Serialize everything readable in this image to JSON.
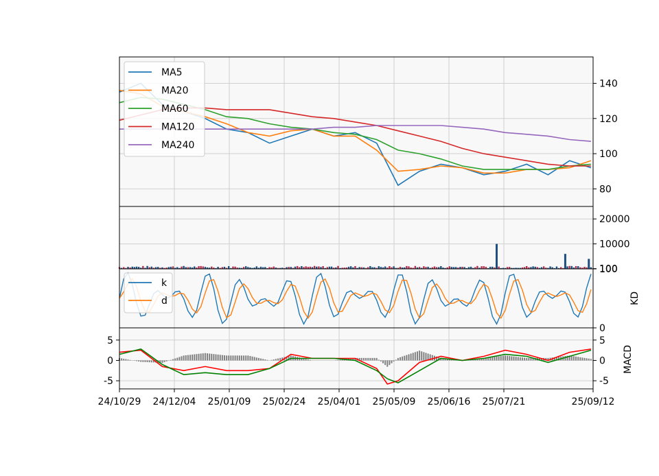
{
  "chart_data": {
    "type": "line",
    "x_tick_labels": [
      "24/10/29",
      "24/12/04",
      "25/01/09",
      "25/02/24",
      "25/04/01",
      "25/05/09",
      "25/06/16",
      "25/07/21",
      "25/09/12"
    ],
    "colors": {
      "MA5": "#1f77b4",
      "MA20": "#ff7f0e",
      "MA60": "#2ca02c",
      "MA120": "#d62728",
      "MA240": "#9467bd",
      "k": "#1f77b4",
      "d": "#ff7f0e",
      "macd_red": "#ff0000",
      "macd_green": "#008000",
      "volume_up": "#b03050",
      "volume_down": "#1f4f7f",
      "histogram": "#808080"
    },
    "price_panel": {
      "y_ticks": [
        "140",
        "120",
        "100",
        "80"
      ],
      "ylim": [
        70,
        155
      ],
      "legend": [
        "MA5",
        "MA20",
        "MA60",
        "MA120",
        "MA240"
      ],
      "legend_position": "upper-left",
      "x": [
        0,
        10,
        20,
        30,
        40,
        50,
        60,
        70,
        80,
        90,
        100,
        110,
        120,
        130,
        140,
        150,
        160,
        170,
        180,
        190,
        200,
        210,
        220
      ],
      "series": [
        {
          "name": "MA5",
          "values": [
            135,
            140,
            128,
            124,
            120,
            114,
            112,
            106,
            110,
            114,
            110,
            112,
            106,
            82,
            90,
            94,
            92,
            88,
            90,
            94,
            88,
            96,
            92
          ]
        },
        {
          "name": "MA20",
          "values": [
            136,
            134,
            127,
            124,
            121,
            117,
            112,
            110,
            113,
            114,
            110,
            110,
            102,
            90,
            91,
            93,
            92,
            89,
            89,
            91,
            91,
            92,
            96
          ]
        },
        {
          "name": "MA60",
          "values": [
            129,
            132,
            131,
            128,
            125,
            121,
            120,
            117,
            115,
            114,
            112,
            111,
            108,
            102,
            100,
            97,
            93,
            91,
            91,
            91,
            91,
            93,
            94
          ]
        },
        {
          "name": "MA120",
          "values": [
            119,
            122,
            125,
            126,
            126,
            125,
            125,
            125,
            123,
            121,
            120,
            118,
            116,
            113,
            110,
            107,
            103,
            100,
            98,
            96,
            94,
            93,
            93
          ]
        },
        {
          "name": "MA240",
          "values": [
            114,
            114,
            114,
            114,
            114,
            114,
            114,
            114,
            114,
            114,
            115,
            115,
            116,
            116,
            116,
            116,
            115,
            114,
            112,
            111,
            110,
            108,
            107
          ]
        }
      ]
    },
    "volume_panel": {
      "y_ticks": [
        "20000",
        "10000",
        "100"
      ],
      "ylim": [
        0,
        25000
      ],
      "spikes": [
        {
          "x": 176,
          "value": 10000
        },
        {
          "x": 208,
          "value": 6000
        },
        {
          "x": 219,
          "value": 4000
        }
      ]
    },
    "kd_panel": {
      "ylabel": "KD",
      "y_ticks": [
        "100",
        "0"
      ],
      "ylim": [
        0,
        100
      ],
      "legend": [
        "k",
        "d"
      ],
      "legend_position": "upper-left"
    },
    "macd_panel": {
      "ylabel": "MACD",
      "y_ticks_left": [
        "5",
        "0",
        "-5"
      ],
      "y_ticks_right": [
        "5",
        "0",
        "-5"
      ],
      "ylim": [
        -7,
        8
      ],
      "x": [
        0,
        10,
        20,
        30,
        40,
        50,
        60,
        70,
        80,
        90,
        100,
        110,
        120,
        125,
        130,
        140,
        150,
        160,
        170,
        180,
        190,
        200,
        210,
        220
      ],
      "series": [
        {
          "name": "red",
          "values": [
            2.0,
            2.5,
            -1.5,
            -2.5,
            -1.5,
            -2.5,
            -2.5,
            -2.0,
            1.5,
            0.5,
            0.5,
            0.5,
            -2.0,
            -5.8,
            -5.0,
            -0.5,
            1.0,
            0.0,
            1.0,
            2.5,
            1.5,
            0.0,
            2.0,
            2.8
          ]
        },
        {
          "name": "green",
          "values": [
            1.5,
            2.8,
            -1.0,
            -3.5,
            -3.0,
            -3.5,
            -3.5,
            -2.0,
            0.5,
            0.5,
            0.5,
            0.0,
            -2.5,
            -4.5,
            -5.5,
            -2.5,
            0.5,
            0.0,
            0.5,
            1.5,
            1.0,
            -0.5,
            1.0,
            2.5
          ]
        }
      ]
    }
  }
}
